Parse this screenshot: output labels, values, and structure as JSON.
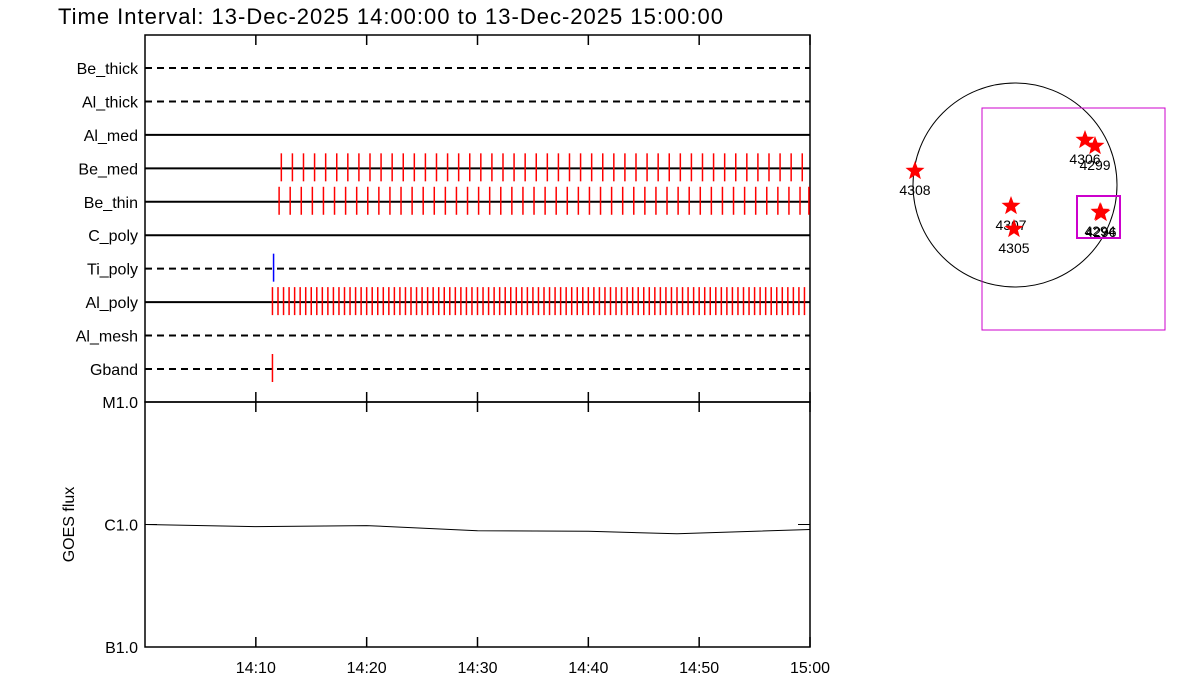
{
  "title": "Time Interval: 13-Dec-2025 14:00:00 to 13-Dec-2025 15:00:00",
  "chart_data": [
    {
      "type": "timeline",
      "categories": [
        "Be_thick",
        "Al_thick",
        "Al_med",
        "Be_med",
        "Be_thin",
        "C_poly",
        "Ti_poly",
        "Al_poly",
        "Al_mesh",
        "Gband"
      ],
      "line_styles": [
        "dashed",
        "dashed",
        "solid",
        "solid",
        "solid",
        "solid",
        "dashed",
        "solid",
        "dashed",
        "dashed"
      ],
      "exposure_colors": [
        "#ff0000",
        "#ff0000",
        "#ff0000",
        "#ff0000",
        "#ff0000",
        "#ff0000",
        "#0000ff",
        "#ff0000",
        "#ff0000",
        "#ff0000"
      ],
      "exposures": [
        [],
        [],
        [],
        [
          12.3,
          13.3,
          14.3,
          15.3,
          16.3,
          17.3,
          18.3,
          19.3,
          20.3,
          21.3,
          22.3,
          23.3,
          24.3,
          25.3,
          26.3,
          27.3,
          28.3,
          29.3,
          30.3,
          31.3,
          32.3,
          33.3,
          34.3,
          35.3,
          36.3,
          37.3,
          38.3,
          39.3,
          40.3,
          41.3,
          42.3,
          43.3,
          44.3,
          45.3,
          46.3,
          47.3,
          48.3,
          49.3,
          50.3,
          51.3,
          52.3,
          53.3,
          54.3,
          55.3,
          56.3,
          57.3,
          58.3,
          59.3
        ],
        [
          12.1,
          13.1,
          14.1,
          15.1,
          16.1,
          17.1,
          18.1,
          19.1,
          20.1,
          21.1,
          22.1,
          23.1,
          24.1,
          25.1,
          26.1,
          27.1,
          28.1,
          29.1,
          30.1,
          31.1,
          32.1,
          33.1,
          34.1,
          35.1,
          36.1,
          37.1,
          38.1,
          39.1,
          40.1,
          41.1,
          42.1,
          43.1,
          44.1,
          45.1,
          46.1,
          47.1,
          48.1,
          49.1,
          50.1,
          51.1,
          52.1,
          53.1,
          54.1,
          55.1,
          56.1,
          57.1,
          58.1,
          59.1,
          59.9
        ],
        [],
        [
          11.6
        ],
        [
          11.5,
          12.0,
          12.5,
          13.0,
          13.5,
          14.0,
          14.5,
          15.0,
          15.5,
          16.0,
          16.5,
          17.0,
          17.5,
          18.0,
          18.5,
          19.0,
          19.5,
          20.0,
          20.5,
          21.0,
          21.5,
          22.0,
          22.5,
          23.0,
          23.5,
          24.0,
          24.5,
          25.0,
          25.5,
          26.0,
          26.5,
          27.0,
          27.5,
          28.0,
          28.5,
          29.0,
          29.5,
          30.0,
          30.5,
          31.0,
          31.5,
          32.0,
          32.5,
          33.0,
          33.5,
          34.0,
          34.5,
          35.0,
          35.5,
          36.0,
          36.5,
          37.0,
          37.5,
          38.0,
          38.5,
          39.0,
          39.5,
          40.0,
          40.5,
          41.0,
          41.5,
          42.0,
          42.5,
          43.0,
          43.5,
          44.0,
          44.5,
          45.0,
          45.5,
          46.0,
          46.5,
          47.0,
          47.5,
          48.0,
          48.5,
          49.0,
          49.5,
          50.0,
          50.5,
          51.0,
          51.5,
          52.0,
          52.5,
          53.0,
          53.5,
          54.0,
          54.5,
          55.0,
          55.5,
          56.0,
          56.5,
          57.0,
          57.5,
          58.0,
          58.5,
          59.0,
          59.5
        ],
        [],
        [
          11.5
        ]
      ],
      "xlim": [
        0,
        60
      ]
    },
    {
      "type": "line",
      "ylabel": "GOES flux",
      "x": [
        0,
        10,
        20,
        30,
        40,
        48,
        60
      ],
      "values": [
        1e-06,
        9.6e-07,
        9.8e-07,
        8.9e-07,
        8.8e-07,
        8.4e-07,
        9.1e-07
      ],
      "color": "#000000",
      "xlim": [
        0,
        60
      ],
      "xticks": [
        {
          "value": 10,
          "label": "14:10"
        },
        {
          "value": 20,
          "label": "14:20"
        },
        {
          "value": 30,
          "label": "14:30"
        },
        {
          "value": 40,
          "label": "14:40"
        },
        {
          "value": 50,
          "label": "14:50"
        },
        {
          "value": 60,
          "label": "15:00"
        }
      ],
      "ylim": [
        1e-07,
        1e-05
      ],
      "yticks": [
        {
          "value": 1e-07,
          "label": "B1.0"
        },
        {
          "value": 1e-06,
          "label": "C1.0"
        },
        {
          "value": 1e-05,
          "label": "M1.0"
        }
      ],
      "ylog": true
    },
    {
      "type": "scatter",
      "labels": [
        "4308",
        "4307",
        "4305",
        "4306",
        "4299",
        "4296",
        "4294"
      ],
      "x": [
        -956,
        -38,
        -10,
        669,
        765,
        822,
        813
      ],
      "values": [
        134,
        -201,
        -421,
        430,
        373,
        -268,
        -258
      ],
      "color": "#ff0000"
    }
  ]
}
